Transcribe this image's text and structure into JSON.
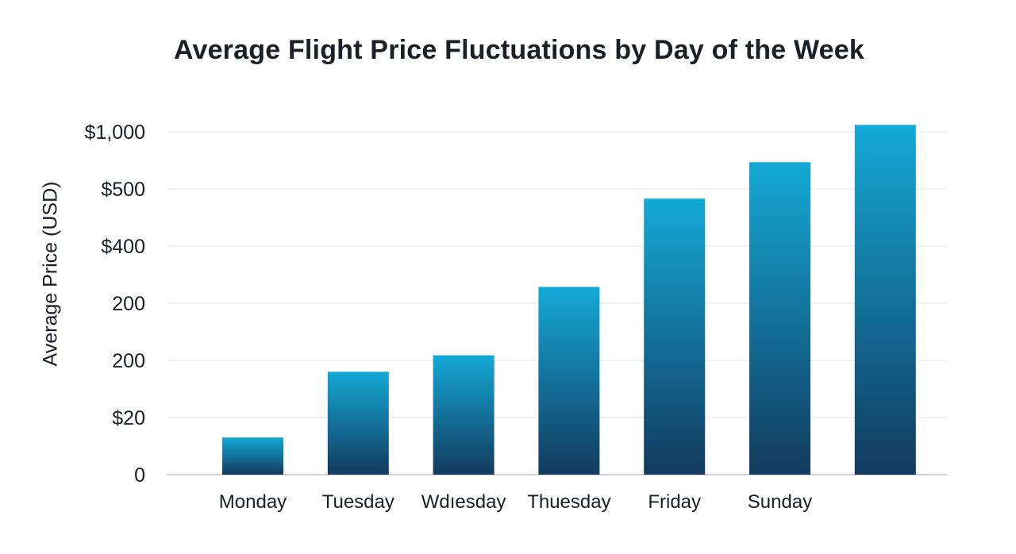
{
  "chart_data": {
    "type": "bar",
    "title": "Average Flight Price Fluctuations by Day of the Week",
    "xlabel": "",
    "ylabel": "Average Price (USD)",
    "y_tick_labels": [
      "0",
      "$20",
      "200",
      "200",
      "$400",
      "$500",
      "$1,000"
    ],
    "categories": [
      "Monday",
      "Tuesday",
      "Wdıesday",
      "Thuesday",
      "Friday",
      "Sunday",
      ""
    ],
    "values": [
      13,
      92,
      118,
      257,
      483,
      734,
      1060
    ],
    "grid": true,
    "legend": "none",
    "colors": {
      "bar_top": "#14a9d6",
      "bar_bottom": "#123a5e",
      "grid": "#e3e5e8",
      "text": "#1b1f26"
    }
  }
}
